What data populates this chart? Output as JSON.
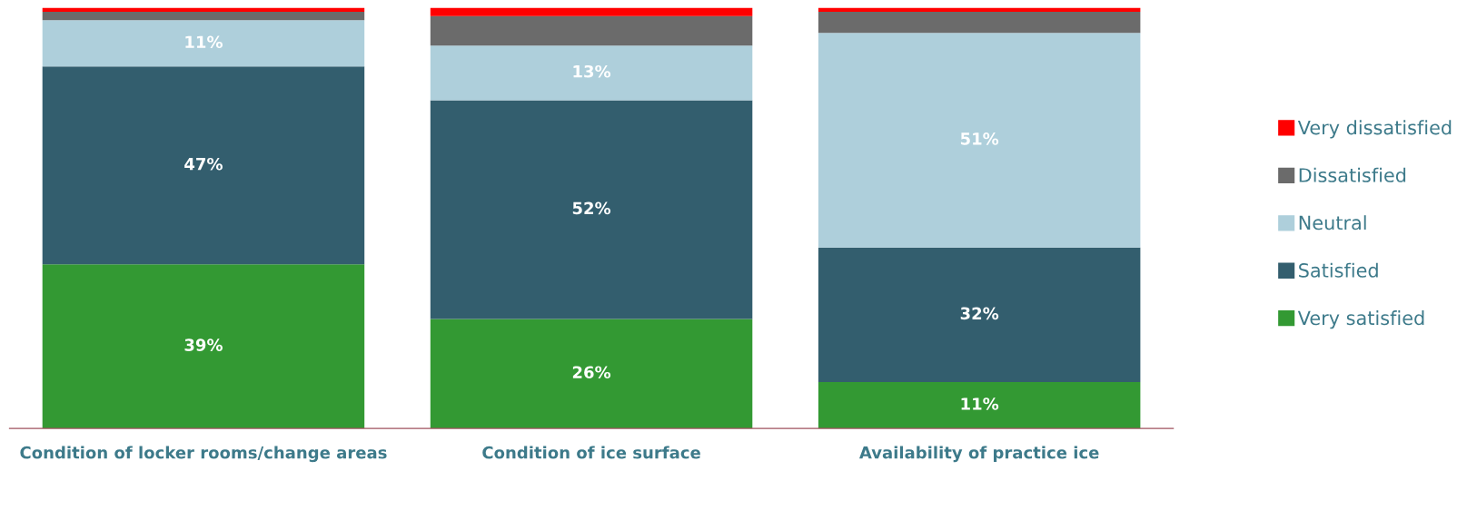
{
  "chart_data": {
    "type": "bar",
    "stacked": true,
    "ylim": [
      0,
      100
    ],
    "legend": "right",
    "grid": false,
    "tick_labels": "x",
    "categories": [
      "Condition of locker rooms/change areas",
      "Condition of ice surface",
      "Availability of practice ice"
    ],
    "series": [
      {
        "name": "Very satisfied",
        "color": "#339933",
        "values": [
          39,
          26,
          11
        ],
        "value_labels": [
          "39%",
          "26%",
          "11%"
        ]
      },
      {
        "name": "Satisfied",
        "color": "#335e6e",
        "values": [
          47,
          52,
          32
        ],
        "value_labels": [
          "47%",
          "52%",
          "32%"
        ]
      },
      {
        "name": "Neutral",
        "color": "#aecfdb",
        "values": [
          11,
          13,
          51
        ],
        "value_labels": [
          "11%",
          "13%",
          "51%"
        ]
      },
      {
        "name": "Dissatisfied",
        "color": "#6b6b6b",
        "values": [
          2,
          7,
          5
        ],
        "value_labels": [
          null,
          null,
          null
        ]
      },
      {
        "name": "Very dissatisfied",
        "color": "#ff0000",
        "values": [
          1,
          2,
          1
        ],
        "value_labels": [
          null,
          null,
          null
        ]
      }
    ]
  }
}
